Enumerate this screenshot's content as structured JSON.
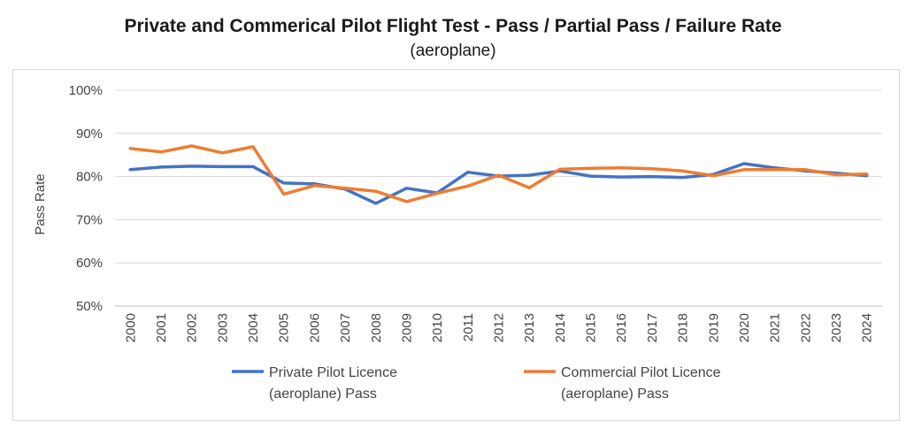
{
  "chart_data": {
    "type": "line",
    "title": "Private and Commerical Pilot Flight Test - Pass / Partial Pass / Failure Rate",
    "subtitle": "(aeroplane)",
    "xlabel": "",
    "ylabel": "Pass Rate",
    "ylim": [
      50,
      100
    ],
    "y_ticks": [
      "50%",
      "60%",
      "70%",
      "80%",
      "90%",
      "100%"
    ],
    "categories": [
      "2000",
      "2001",
      "2002",
      "2003",
      "2004",
      "2005",
      "2006",
      "2007",
      "2008",
      "2009",
      "2010",
      "2011",
      "2012",
      "2013",
      "2014",
      "2015",
      "2016",
      "2017",
      "2018",
      "2019",
      "2020",
      "2021",
      "2022",
      "2023",
      "2024"
    ],
    "grid": true,
    "legend_position": "bottom",
    "series": [
      {
        "name": "Private Pilot Licence (aeroplane) Pass",
        "legend_lines": [
          "Private Pilot Licence",
          "(aeroplane) Pass"
        ],
        "color": "#4472c4",
        "values": [
          81.6,
          82.2,
          82.4,
          82.3,
          82.3,
          78.5,
          78.3,
          77.1,
          73.8,
          77.3,
          76.2,
          81.0,
          80.1,
          80.3,
          81.3,
          80.1,
          79.9,
          80.0,
          79.8,
          80.5,
          83.0,
          82.0,
          81.3,
          80.8,
          80.2
        ]
      },
      {
        "name": "Commercial Pilot Licence (aeroplane) Pass",
        "legend_lines": [
          "Commercial Pilot Licence",
          "(aeroplane) Pass"
        ],
        "color": "#ed7d31",
        "values": [
          86.5,
          85.7,
          87.1,
          85.5,
          86.9,
          75.9,
          77.9,
          77.3,
          76.6,
          74.2,
          76.1,
          77.8,
          80.3,
          77.4,
          81.7,
          81.9,
          82.0,
          81.8,
          81.3,
          80.2,
          81.6,
          81.6,
          81.6,
          80.4,
          80.6
        ]
      }
    ]
  }
}
